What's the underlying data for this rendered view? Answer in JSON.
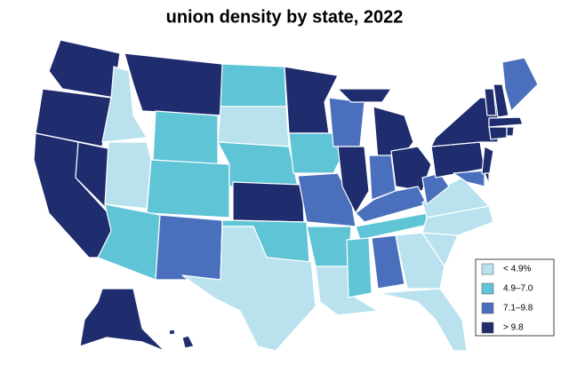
{
  "title": "union density by state, 2022",
  "legend": [
    {
      "label": "< 4.9%",
      "color": "#b9e2ee"
    },
    {
      "label": "4.9–7.0",
      "color": "#5fc4d6"
    },
    {
      "label": "7.1–9.8",
      "color": "#4a70bd"
    },
    {
      "label": "> 9.8",
      "color": "#1f2c6e"
    }
  ],
  "regions": [
    3,
    3,
    3,
    3,
    0,
    3,
    1,
    0,
    1,
    1,
    2,
    1,
    0,
    1,
    3,
    1,
    0,
    3,
    1,
    2,
    1,
    0,
    2,
    3,
    3,
    3,
    2,
    3,
    2,
    1,
    1,
    2,
    0,
    0,
    0,
    0,
    0,
    2,
    3,
    3,
    2,
    3,
    3,
    3,
    2,
    3,
    3,
    3,
    3,
    3,
    3,
    3
  ]
}
